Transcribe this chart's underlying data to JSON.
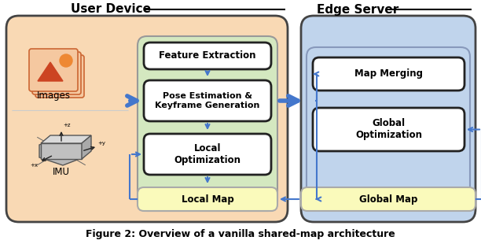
{
  "title": "Figure 2: Overview of a vanilla shared-map architecture",
  "user_device_label": "User Device",
  "edge_server_label": "Edge Server",
  "images_label": "Images",
  "imu_label": "IMU",
  "boxes": {
    "feature_extraction": "Feature Extraction",
    "pose_estimation": "Pose Estimation &\nKeyframe Generation",
    "local_optimization": "Local\nOptimization",
    "local_map": "Local Map",
    "map_merging": "Map Merging",
    "global_optimization": "Global\nOptimization",
    "global_map": "Global Map"
  },
  "colors": {
    "user_device_bg": "#F9D9B4",
    "edge_server_bg": "#C0D4EC",
    "green_panel_bg": "#D4E8C0",
    "white_box": "#FFFFFF",
    "yellow_box": "#FAFABB",
    "arrow": "#4477CC",
    "thick_arrow": "#4477CC"
  },
  "figure_width": 6.12,
  "figure_height": 3.1,
  "dpi": 100
}
